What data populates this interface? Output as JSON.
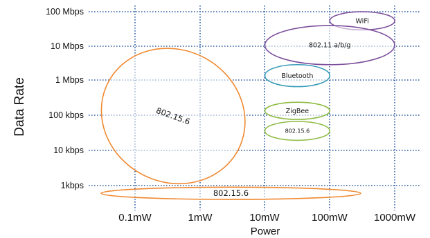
{
  "chart_data": {
    "type": "scatter",
    "title": "",
    "xlabel": "Power",
    "ylabel": "Data Rate",
    "x_ticks": [
      "0.1mW",
      "1mW",
      "10mW",
      "100mW",
      "1000mW"
    ],
    "y_ticks": [
      "100 Mbps",
      "10 Mbps",
      "1 Mbps",
      "100 kbps",
      "10 kbps",
      "1kbps"
    ],
    "grid": true,
    "grid_style": "dotted",
    "grid_color": "#2e5fa3",
    "x_scale": "log",
    "y_scale": "log",
    "technologies": [
      {
        "label": "WiFi",
        "color": "#7d4f9c",
        "power_mW": [
          100,
          1000
        ],
        "rate_bps": [
          30000000,
          100000000
        ]
      },
      {
        "label": "802.11 a/b/g",
        "color": "#7d4f9c",
        "power_mW": [
          10,
          1000
        ],
        "rate_bps": [
          3000000,
          40000000
        ]
      },
      {
        "label": "Bluetooth",
        "color": "#3a9cb9",
        "power_mW": [
          10,
          100
        ],
        "rate_bps": [
          700000,
          3000000
        ]
      },
      {
        "label": "ZigBee",
        "color": "#8fbc45",
        "power_mW": [
          10,
          100
        ],
        "rate_bps": [
          80000,
          250000
        ]
      },
      {
        "label": "802.15.6",
        "color": "#8fbc45",
        "power_mW": [
          10,
          100
        ],
        "rate_bps": [
          20000,
          70000
        ]
      },
      {
        "label": "802.15.6",
        "color": "#f0882f",
        "power_mW": [
          0.03,
          5
        ],
        "rate_bps": [
          1000,
          10000000
        ]
      },
      {
        "label": "802.15.6",
        "color": "#f0882f",
        "power_mW": [
          0.03,
          300
        ],
        "rate_bps": [
          400,
          900
        ]
      }
    ]
  }
}
